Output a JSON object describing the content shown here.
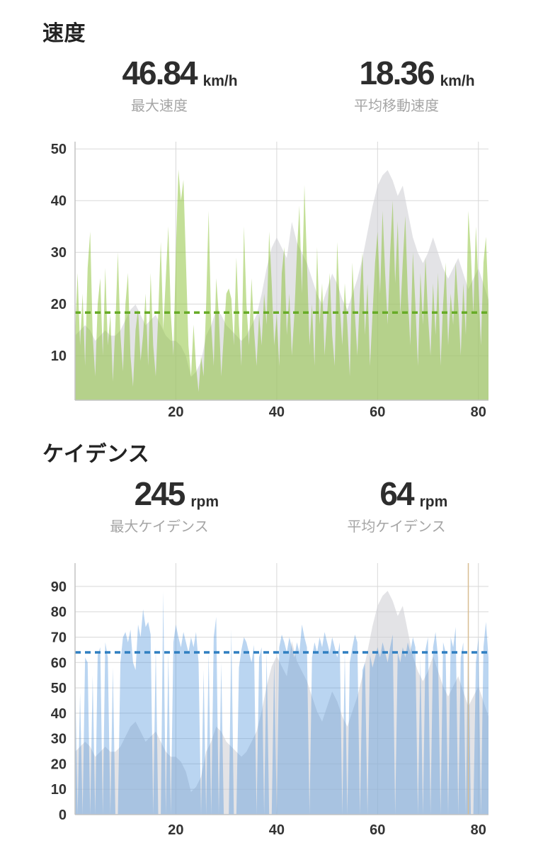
{
  "speed_section": {
    "title": "速度",
    "stats": [
      {
        "value": "46.84",
        "unit": "km/h",
        "label": "最大速度"
      },
      {
        "value": "18.36",
        "unit": "km/h",
        "label": "平均移動速度"
      }
    ]
  },
  "cadence_section": {
    "title": "ケイデンス",
    "stats": [
      {
        "value": "245",
        "unit": "rpm",
        "label": "最大ケイデンス"
      },
      {
        "value": "64",
        "unit": "rpm",
        "label": "平均ケイデンス"
      }
    ]
  },
  "colors": {
    "speed_fill": "#88bf2f",
    "speed_fill_opacity": 0.5,
    "speed_avg_line": "#67ab27",
    "cadence_fill": "#4a90d9",
    "cadence_fill_opacity": 0.38,
    "cadence_avg_line": "#2f7fc1",
    "elevation_fill": "#d0d0d6",
    "elevation_opacity": 0.6,
    "grid": "#d8d8d8",
    "axis": "#c4c4c4",
    "tick_text": "#333333",
    "marker_line": "#d8bd92"
  },
  "chart_data": [
    {
      "type": "area",
      "name": "speed",
      "title": "速度",
      "ylabel": "km/h",
      "x_min": 0,
      "x_max": 82,
      "y_min": 1.4,
      "y_max": 51.4,
      "x_ticks": [
        20,
        40,
        60,
        80
      ],
      "y_ticks": [
        10,
        20,
        30,
        40,
        50
      ],
      "avg_line": 18.36,
      "x_start": 0,
      "x_step": 0.5,
      "values": [
        14,
        26,
        12,
        22,
        8,
        27,
        34,
        14,
        6,
        20,
        25,
        10,
        27,
        12,
        18,
        5,
        16,
        30,
        14,
        7,
        20,
        26,
        10,
        4,
        15,
        19,
        9,
        14,
        22,
        8,
        26,
        12,
        6,
        18,
        32,
        15,
        25,
        35,
        18,
        10,
        30,
        46,
        40,
        44,
        28,
        12,
        6,
        16,
        8,
        3,
        10,
        6,
        20,
        38,
        16,
        8,
        25,
        18,
        6,
        14,
        22,
        23,
        21,
        12,
        29,
        16,
        8,
        35,
        20,
        12,
        25,
        15,
        8,
        18,
        12,
        22,
        16,
        34,
        24,
        12,
        18,
        8,
        26,
        31,
        14,
        22,
        10,
        18,
        30,
        39,
        22,
        43,
        28,
        12,
        20,
        8,
        31,
        16,
        24,
        10,
        18,
        26,
        14,
        8,
        32,
        20,
        12,
        24,
        16,
        6,
        28,
        18,
        10,
        22,
        30,
        14,
        24,
        8,
        18,
        28,
        34,
        22,
        38,
        26,
        16,
        30,
        40,
        24,
        36,
        18,
        28,
        37,
        22,
        12,
        30,
        20,
        8,
        26,
        16,
        29,
        18,
        10,
        24,
        14,
        26,
        8,
        20,
        28,
        12,
        22,
        16,
        28,
        20,
        10,
        24,
        14,
        38,
        30,
        18,
        35,
        24,
        12,
        28,
        33,
        20
      ],
      "has_elevation_background": true,
      "marker": null
    },
    {
      "type": "area",
      "name": "cadence",
      "title": "ケイデンス",
      "ylabel": "rpm",
      "x_min": 0,
      "x_max": 82,
      "y_min": 0,
      "y_max": 99.2,
      "x_ticks": [
        20,
        40,
        60,
        80
      ],
      "y_ticks": [
        0,
        10,
        20,
        30,
        40,
        50,
        60,
        70,
        80,
        90
      ],
      "avg_line": 64,
      "x_start": 0,
      "x_step": 0.5,
      "values": [
        58,
        0,
        48,
        0,
        62,
        60,
        0,
        55,
        0,
        63,
        66,
        0,
        68,
        62,
        0,
        58,
        0,
        0,
        60,
        70,
        72,
        68,
        73,
        60,
        57,
        75,
        70,
        81,
        74,
        76,
        71,
        0,
        66,
        0,
        0,
        88,
        0,
        64,
        0,
        68,
        75,
        70,
        66,
        72,
        68,
        64,
        70,
        66,
        72,
        60,
        0,
        57,
        0,
        64,
        0,
        70,
        78,
        0,
        60,
        0,
        0,
        0,
        73,
        0,
        0,
        58,
        65,
        70,
        68,
        64,
        60,
        67,
        0,
        62,
        66,
        0,
        64,
        0,
        0,
        61,
        0,
        66,
        71,
        68,
        64,
        70,
        66,
        62,
        68,
        64,
        75,
        70,
        66,
        0,
        62,
        68,
        64,
        70,
        66,
        72,
        68,
        64,
        70,
        66,
        62,
        68,
        0,
        64,
        0,
        60,
        66,
        71,
        68,
        0,
        57,
        60,
        0,
        63,
        58,
        62,
        66,
        62,
        68,
        64,
        60,
        66,
        71,
        0,
        64,
        60,
        66,
        62,
        68,
        64,
        70,
        66,
        0,
        62,
        0,
        65,
        70,
        0,
        66,
        72,
        62,
        0,
        68,
        64,
        0,
        70,
        66,
        74,
        0,
        62,
        68,
        0,
        75,
        0,
        0,
        60,
        70,
        0,
        66,
        76,
        62
      ],
      "has_elevation_background": true,
      "marker": {
        "x": 78,
        "note": "spike-marker"
      }
    }
  ],
  "elevation_profile_norm": [
    0.25,
    0.27,
    0.29,
    0.27,
    0.23,
    0.25,
    0.27,
    0.25,
    0.25,
    0.27,
    0.31,
    0.35,
    0.37,
    0.33,
    0.29,
    0.31,
    0.33,
    0.29,
    0.25,
    0.23,
    0.23,
    0.21,
    0.17,
    0.09,
    0.11,
    0.15,
    0.25,
    0.29,
    0.35,
    0.33,
    0.29,
    0.27,
    0.25,
    0.23,
    0.25,
    0.29,
    0.33,
    0.41,
    0.51,
    0.59,
    0.63,
    0.59,
    0.55,
    0.69,
    0.61,
    0.57,
    0.53,
    0.47,
    0.41,
    0.37,
    0.43,
    0.49,
    0.45,
    0.39,
    0.35,
    0.41,
    0.47,
    0.55,
    0.65,
    0.75,
    0.83,
    0.87,
    0.89,
    0.85,
    0.79,
    0.83,
    0.73,
    0.63,
    0.57,
    0.53,
    0.57,
    0.63,
    0.57,
    0.51,
    0.47,
    0.51,
    0.55,
    0.49,
    0.43,
    0.47,
    0.51,
    0.45,
    0.39
  ]
}
